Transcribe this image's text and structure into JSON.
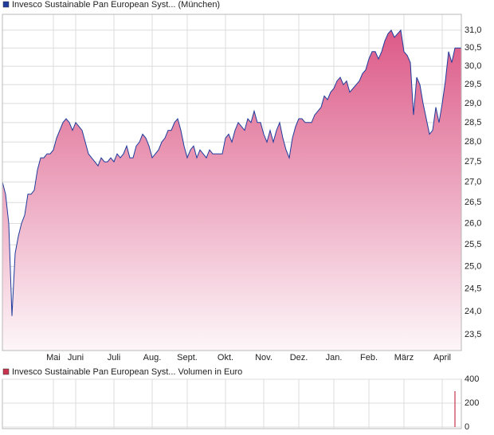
{
  "chart_data": [
    {
      "type": "area",
      "title": "Invesco Sustainable Pan European Syst... (München)",
      "log_scale": true,
      "grid": true,
      "categories": [
        null,
        null,
        null,
        null,
        null,
        null,
        null,
        null,
        null,
        null,
        null,
        null,
        null,
        null,
        null,
        null,
        "Mai",
        null,
        null,
        null,
        null,
        null,
        null,
        "Juni",
        null,
        null,
        null,
        null,
        null,
        null,
        null,
        null,
        null,
        null,
        null,
        "Juli",
        null,
        null,
        null,
        null,
        null,
        null,
        null,
        null,
        null,
        null,
        null,
        "Aug.",
        null,
        null,
        null,
        null,
        null,
        null,
        null,
        null,
        null,
        null,
        "Sept.",
        null,
        null,
        null,
        null,
        null,
        null,
        null,
        null,
        null,
        null,
        null,
        "Okt.",
        null,
        null,
        null,
        null,
        null,
        null,
        null,
        null,
        null,
        null,
        null,
        "Nov.",
        null,
        null,
        null,
        null,
        null,
        null,
        null,
        null,
        null,
        null,
        "Dez.",
        null,
        null,
        null,
        null,
        null,
        null,
        null,
        null,
        null,
        null,
        "Jan.",
        null,
        null,
        null,
        null,
        null,
        null,
        null,
        null,
        null,
        null,
        "Feb.",
        null,
        null,
        null,
        null,
        null,
        null,
        null,
        null,
        null,
        null,
        "März",
        null,
        null,
        null,
        null,
        null,
        null,
        null,
        null,
        null,
        null,
        null,
        "April",
        null,
        null,
        null,
        null,
        null,
        null
      ],
      "series": [
        {
          "color": "#1f3c9c",
          "values": [
            27.0,
            26.7,
            26.0,
            23.9,
            25.3,
            25.7,
            26.0,
            26.2,
            26.7,
            26.7,
            26.8,
            27.3,
            27.6,
            27.6,
            27.7,
            27.7,
            27.8,
            28.1,
            28.3,
            28.5,
            28.6,
            28.5,
            28.3,
            28.5,
            28.4,
            28.3,
            28.0,
            27.7,
            27.6,
            27.5,
            27.4,
            27.6,
            27.5,
            27.5,
            27.6,
            27.5,
            27.7,
            27.6,
            27.7,
            27.9,
            27.6,
            27.6,
            27.9,
            28.0,
            28.2,
            28.1,
            27.9,
            27.6,
            27.7,
            27.8,
            28.0,
            28.1,
            28.3,
            28.3,
            28.5,
            28.6,
            28.3,
            27.9,
            27.6,
            27.8,
            27.9,
            27.6,
            27.8,
            27.7,
            27.6,
            27.8,
            27.7,
            27.7,
            27.7,
            27.7,
            28.1,
            28.2,
            28.0,
            28.3,
            28.5,
            28.4,
            28.3,
            28.6,
            28.5,
            28.8,
            28.5,
            28.5,
            28.2,
            28.0,
            28.3,
            28.0,
            28.3,
            28.5,
            28.1,
            27.8,
            27.6,
            28.1,
            28.4,
            28.6,
            28.6,
            28.5,
            28.5,
            28.5,
            28.7,
            28.8,
            28.9,
            29.2,
            29.1,
            29.3,
            29.4,
            29.6,
            29.7,
            29.5,
            29.6,
            29.3,
            29.4,
            29.5,
            29.6,
            29.8,
            29.9,
            30.2,
            30.4,
            30.4,
            30.2,
            30.4,
            30.7,
            30.9,
            31.0,
            30.8,
            30.9,
            31.0,
            30.4,
            30.3,
            30.1,
            28.7,
            29.7,
            29.5,
            29.0,
            28.6,
            28.2,
            28.3,
            28.9,
            28.5,
            29.0,
            29.6,
            30.4,
            30.1,
            30.5,
            30.5,
            30.5
          ]
        }
      ],
      "ylim": [
        23.16,
        31.45
      ],
      "yticks": [
        {
          "value": 23.5,
          "label": "23,5"
        },
        {
          "value": 24,
          "label": "24,0"
        },
        {
          "value": 24.5,
          "label": "24,5"
        },
        {
          "value": 25,
          "label": "25,0"
        },
        {
          "value": 25.5,
          "label": "25,5"
        },
        {
          "value": 26,
          "label": "26,0"
        },
        {
          "value": 26.5,
          "label": "26,5"
        },
        {
          "value": 27,
          "label": "27,0"
        },
        {
          "value": 27.5,
          "label": "27,5"
        },
        {
          "value": 28,
          "label": "28,0"
        },
        {
          "value": 28.5,
          "label": "28,5"
        },
        {
          "value": 29,
          "label": "29,0"
        },
        {
          "value": 29.5,
          "label": "29,5"
        },
        {
          "value": 30,
          "label": "30,0"
        },
        {
          "value": 30.5,
          "label": "30,5"
        },
        {
          "value": 31,
          "label": "31,0"
        }
      ]
    },
    {
      "type": "bar",
      "title": "Invesco Sustainable Pan European Syst... Volumen in Euro",
      "grid": true,
      "series": [
        {
          "color": "#c8344e",
          "values": [
            0,
            0,
            0,
            0,
            0,
            0,
            0,
            0,
            0,
            0,
            0,
            0,
            0,
            0,
            0,
            0,
            0,
            0,
            0,
            0,
            0,
            0,
            0,
            0,
            0,
            0,
            0,
            0,
            0,
            0,
            0,
            0,
            0,
            0,
            0,
            0,
            0,
            0,
            0,
            0,
            0,
            0,
            0,
            0,
            0,
            0,
            0,
            0,
            0,
            0,
            0,
            0,
            0,
            0,
            0,
            0,
            0,
            0,
            0,
            0,
            0,
            0,
            0,
            0,
            0,
            0,
            0,
            0,
            0,
            0,
            0,
            0,
            0,
            0,
            0,
            0,
            0,
            0,
            0,
            0,
            0,
            0,
            0,
            0,
            0,
            0,
            0,
            0,
            0,
            0,
            0,
            0,
            0,
            0,
            0,
            0,
            0,
            0,
            0,
            0,
            0,
            0,
            0,
            0,
            0,
            0,
            0,
            0,
            0,
            0,
            0,
            0,
            0,
            0,
            0,
            0,
            0,
            0,
            0,
            0,
            0,
            0,
            0,
            0,
            0,
            0,
            0,
            0,
            0,
            0,
            0,
            0,
            0,
            0,
            0,
            0,
            0,
            0,
            0,
            0,
            0,
            0,
            300,
            0,
            0
          ]
        }
      ],
      "ylim": [
        0,
        400
      ],
      "yticks": [
        0,
        200,
        400
      ]
    }
  ]
}
